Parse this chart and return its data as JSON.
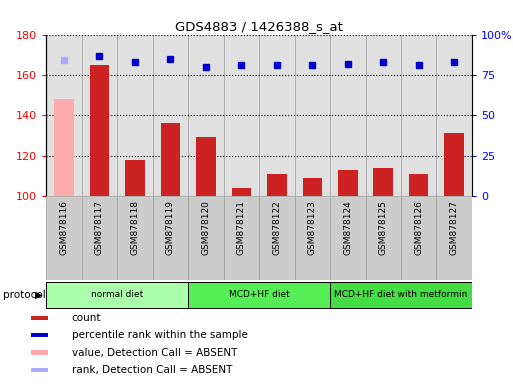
{
  "title": "GDS4883 / 1426388_s_at",
  "samples": [
    "GSM878116",
    "GSM878117",
    "GSM878118",
    "GSM878119",
    "GSM878120",
    "GSM878121",
    "GSM878122",
    "GSM878123",
    "GSM878124",
    "GSM878125",
    "GSM878126",
    "GSM878127"
  ],
  "count_values": [
    148,
    165,
    118,
    136,
    129,
    104,
    111,
    109,
    113,
    114,
    111,
    131
  ],
  "count_absent": [
    true,
    false,
    false,
    false,
    false,
    false,
    false,
    false,
    false,
    false,
    false,
    false
  ],
  "percentile_values": [
    84,
    87,
    83,
    85,
    80,
    81,
    81,
    81,
    82,
    83,
    81,
    83
  ],
  "percentile_absent": [
    true,
    false,
    false,
    false,
    false,
    false,
    false,
    false,
    false,
    false,
    false,
    false
  ],
  "ylim_left": [
    100,
    180
  ],
  "ylim_right": [
    0,
    100
  ],
  "yticks_left": [
    100,
    120,
    140,
    160,
    180
  ],
  "yticks_right": [
    0,
    25,
    50,
    75,
    100
  ],
  "ytick_labels_right": [
    "0",
    "25",
    "50",
    "75",
    "100%"
  ],
  "protocols": [
    {
      "label": "normal diet",
      "start": 0,
      "end": 4
    },
    {
      "label": "MCD+HF diet",
      "start": 4,
      "end": 8
    },
    {
      "label": "MCD+HF diet with metformin",
      "start": 8,
      "end": 12
    }
  ],
  "protocol_colors": [
    "#aaffaa",
    "#55ee55",
    "#44dd44"
  ],
  "bar_color_normal": "#cc2222",
  "bar_color_absent": "#ffaaaa",
  "dot_color_normal": "#0000cc",
  "dot_color_absent": "#aaaaff",
  "legend_items": [
    {
      "label": "count",
      "color": "#cc2222"
    },
    {
      "label": "percentile rank within the sample",
      "color": "#0000cc"
    },
    {
      "label": "value, Detection Call = ABSENT",
      "color": "#ffaaaa"
    },
    {
      "label": "rank, Detection Call = ABSENT",
      "color": "#aaaaff"
    }
  ],
  "protocol_label": "protocol",
  "background_color": "#ffffff",
  "bar_bg_color": "#cccccc",
  "col_border_color": "#999999"
}
